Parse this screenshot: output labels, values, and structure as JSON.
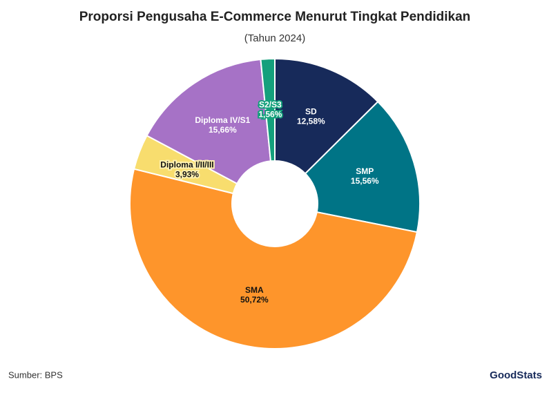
{
  "chart_data": {
    "type": "donut",
    "title": "Proporsi Pengusaha E-Commerce Menurut Tingkat Pendidikan",
    "subtitle": "(Tahun 2024)",
    "categories": [
      "SD",
      "SMP",
      "SMA",
      "Diploma I/II/III",
      "Diploma IV/S1",
      "S2/S3"
    ],
    "values": [
      12.58,
      15.56,
      50.72,
      3.93,
      15.66,
      1.56
    ],
    "value_labels": [
      "12,58%",
      "15,56%",
      "50,72%",
      "3,93%",
      "15,66%",
      "1,56%"
    ],
    "colors": [
      "#172a5a",
      "#007486",
      "#fe952b",
      "#f8dd6e",
      "#a672c6",
      "#14a07c"
    ],
    "source": "Sumber: BPS",
    "brand": "GoodStats"
  }
}
